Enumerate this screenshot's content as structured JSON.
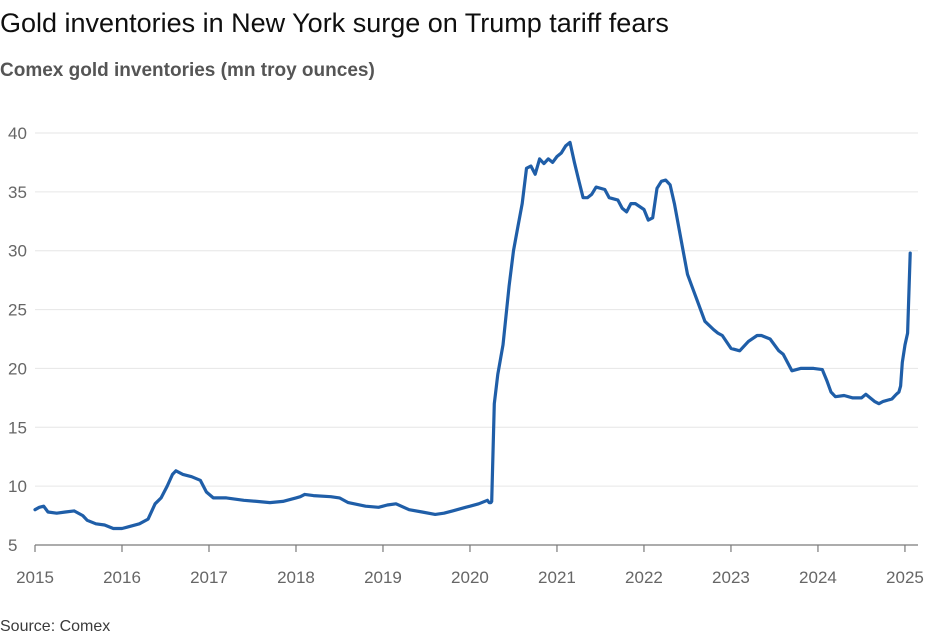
{
  "chart_data": {
    "type": "line",
    "title": "Gold inventories in New York surge on Trump tariff fears",
    "subtitle": "Comex gold inventories (mn troy ounces)",
    "source": "Source: Comex",
    "xlabel": "",
    "ylabel": "",
    "xlim": [
      2015,
      2025.15
    ],
    "ylim": [
      5,
      40
    ],
    "x_ticks": [
      2015,
      2016,
      2017,
      2018,
      2019,
      2020,
      2021,
      2022,
      2023,
      2024,
      2025
    ],
    "y_ticks": [
      5,
      10,
      15,
      20,
      25,
      30,
      35,
      40
    ],
    "grid": true,
    "legend": "none",
    "colors": {
      "line": "#1f5ea8",
      "grid": "#e6e6e6",
      "axis": "#7a7a7a"
    },
    "series": [
      {
        "name": "",
        "x": [
          2015.0,
          2015.05,
          2015.1,
          2015.15,
          2015.25,
          2015.35,
          2015.45,
          2015.55,
          2015.6,
          2015.7,
          2015.8,
          2015.9,
          2016.0,
          2016.1,
          2016.2,
          2016.3,
          2016.38,
          2016.45,
          2016.52,
          2016.58,
          2016.62,
          2016.7,
          2016.8,
          2016.9,
          2016.97,
          2017.05,
          2017.2,
          2017.4,
          2017.55,
          2017.7,
          2017.85,
          2018.0,
          2018.05,
          2018.1,
          2018.2,
          2018.4,
          2018.5,
          2018.6,
          2018.8,
          2018.95,
          2019.05,
          2019.15,
          2019.3,
          2019.45,
          2019.6,
          2019.7,
          2019.8,
          2019.95,
          2020.0,
          2020.1,
          2020.2,
          2020.22,
          2020.24,
          2020.25,
          2020.28,
          2020.32,
          2020.38,
          2020.45,
          2020.5,
          2020.55,
          2020.6,
          2020.65,
          2020.7,
          2020.75,
          2020.8,
          2020.85,
          2020.9,
          2020.95,
          2021.0,
          2021.05,
          2021.1,
          2021.15,
          2021.2,
          2021.25,
          2021.3,
          2021.35,
          2021.4,
          2021.45,
          2021.55,
          2021.6,
          2021.7,
          2021.75,
          2021.8,
          2021.85,
          2021.9,
          2022.0,
          2022.05,
          2022.1,
          2022.15,
          2022.2,
          2022.25,
          2022.3,
          2022.35,
          2022.45,
          2022.5,
          2022.55,
          2022.6,
          2022.7,
          2022.8,
          2022.85,
          2022.9,
          2023.0,
          2023.1,
          2023.2,
          2023.3,
          2023.35,
          2023.45,
          2023.55,
          2023.6,
          2023.7,
          2023.8,
          2023.95,
          2024.05,
          2024.1,
          2024.15,
          2024.2,
          2024.3,
          2024.4,
          2024.5,
          2024.55,
          2024.6,
          2024.65,
          2024.7,
          2024.75,
          2024.85,
          2024.9,
          2024.93,
          2024.95,
          2024.97,
          2025.0,
          2025.03,
          2025.06
        ],
        "values": [
          8.0,
          8.2,
          8.3,
          7.8,
          7.7,
          7.8,
          7.9,
          7.5,
          7.1,
          6.8,
          6.7,
          6.4,
          6.4,
          6.6,
          6.8,
          7.2,
          8.5,
          9.0,
          10.0,
          11.0,
          11.3,
          11.0,
          10.8,
          10.5,
          9.5,
          9.0,
          9.0,
          8.8,
          8.7,
          8.6,
          8.7,
          9.0,
          9.1,
          9.3,
          9.2,
          9.1,
          9.0,
          8.6,
          8.3,
          8.2,
          8.4,
          8.5,
          8.0,
          7.8,
          7.6,
          7.7,
          7.9,
          8.2,
          8.3,
          8.5,
          8.8,
          8.6,
          8.6,
          8.7,
          17.0,
          19.5,
          22.0,
          27.0,
          30.0,
          32.0,
          34.0,
          37.0,
          37.2,
          36.5,
          37.8,
          37.4,
          37.8,
          37.5,
          38.0,
          38.3,
          38.9,
          39.2,
          37.5,
          36.0,
          34.5,
          34.5,
          34.8,
          35.4,
          35.2,
          34.5,
          34.3,
          33.6,
          33.3,
          34.0,
          34.0,
          33.5,
          32.6,
          32.8,
          35.3,
          35.9,
          36.0,
          35.6,
          34.0,
          30.0,
          28.0,
          27.0,
          26.0,
          24.0,
          23.3,
          23.0,
          22.8,
          21.7,
          21.5,
          22.3,
          22.8,
          22.8,
          22.5,
          21.5,
          21.2,
          19.8,
          20.0,
          20.0,
          19.9,
          19.0,
          18.0,
          17.6,
          17.7,
          17.5,
          17.5,
          17.8,
          17.5,
          17.2,
          17.0,
          17.2,
          17.4,
          17.8,
          18.0,
          18.5,
          20.5,
          22.0,
          23.0,
          29.8
        ]
      }
    ]
  }
}
